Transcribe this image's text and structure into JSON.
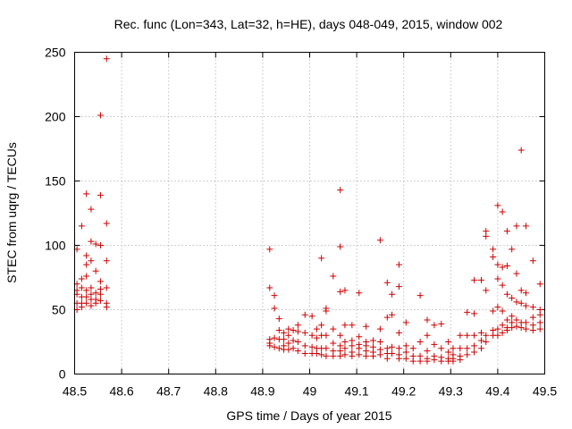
{
  "chart_data": {
    "type": "scatter",
    "title": "Rec. func (Lon=343, Lat=32, h=HE), days 048-049, 2015, window 002",
    "xlabel": "GPS time / Days of year 2015",
    "ylabel": "STEC from uqrg / TECUs",
    "xlim": [
      48.5,
      49.5
    ],
    "ylim": [
      0,
      250
    ],
    "xticks": [
      48.5,
      48.6,
      48.7,
      48.8,
      48.9,
      49,
      49.1,
      49.2,
      49.3,
      49.4,
      49.5
    ],
    "xtick_labels": [
      "48.5",
      "48.6",
      "48.7",
      "48.8",
      "48.9",
      "49",
      "49.1",
      "49.2",
      "49.3",
      "49.4",
      "49.5"
    ],
    "yticks": [
      0,
      50,
      100,
      150,
      200,
      250
    ],
    "ytick_labels": [
      "0",
      "50",
      "100",
      "150",
      "200",
      "250"
    ],
    "grid": true,
    "marker": "plus",
    "color": "#cc0000",
    "series": [
      {
        "points": [
          [
            48.505,
            97
          ],
          [
            48.505,
            70
          ],
          [
            48.505,
            65
          ],
          [
            48.505,
            62
          ],
          [
            48.505,
            55
          ],
          [
            48.505,
            50
          ],
          [
            48.515,
            115
          ],
          [
            48.515,
            74
          ],
          [
            48.515,
            67
          ],
          [
            48.515,
            60
          ],
          [
            48.515,
            55
          ],
          [
            48.515,
            52
          ],
          [
            48.525,
            140
          ],
          [
            48.525,
            92
          ],
          [
            48.525,
            85
          ],
          [
            48.525,
            76
          ],
          [
            48.525,
            65
          ],
          [
            48.525,
            60
          ],
          [
            48.525,
            55
          ],
          [
            48.535,
            128
          ],
          [
            48.535,
            103
          ],
          [
            48.535,
            88
          ],
          [
            48.535,
            67
          ],
          [
            48.535,
            62
          ],
          [
            48.535,
            58
          ],
          [
            48.535,
            53
          ],
          [
            48.545,
            101
          ],
          [
            48.545,
            80
          ],
          [
            48.545,
            63
          ],
          [
            48.545,
            58
          ],
          [
            48.545,
            55
          ],
          [
            48.555,
            201
          ],
          [
            48.555,
            139
          ],
          [
            48.555,
            100
          ],
          [
            48.555,
            72
          ],
          [
            48.555,
            66
          ],
          [
            48.555,
            62
          ],
          [
            48.555,
            57
          ],
          [
            48.568,
            245
          ],
          [
            48.568,
            117
          ],
          [
            48.568,
            88
          ],
          [
            48.568,
            67
          ],
          [
            48.568,
            55
          ],
          [
            48.568,
            52
          ],
          [
            48.915,
            97
          ],
          [
            48.915,
            67
          ],
          [
            48.915,
            27
          ],
          [
            48.915,
            24
          ],
          [
            48.915,
            22
          ],
          [
            48.925,
            61
          ],
          [
            48.925,
            51
          ],
          [
            48.925,
            28
          ],
          [
            48.925,
            21
          ],
          [
            48.935,
            43
          ],
          [
            48.935,
            34
          ],
          [
            48.935,
            27
          ],
          [
            48.935,
            20
          ],
          [
            48.945,
            32
          ],
          [
            48.945,
            27
          ],
          [
            48.945,
            22
          ],
          [
            48.945,
            19
          ],
          [
            48.955,
            35
          ],
          [
            48.955,
            30
          ],
          [
            48.955,
            24
          ],
          [
            48.955,
            19
          ],
          [
            48.965,
            34
          ],
          [
            48.965,
            26
          ],
          [
            48.965,
            20
          ],
          [
            48.975,
            38
          ],
          [
            48.975,
            33
          ],
          [
            48.975,
            25
          ],
          [
            48.975,
            18
          ],
          [
            48.99,
            46
          ],
          [
            48.99,
            32
          ],
          [
            48.99,
            22
          ],
          [
            48.99,
            16
          ],
          [
            49.005,
            45
          ],
          [
            49.005,
            30
          ],
          [
            49.005,
            21
          ],
          [
            49.005,
            16
          ],
          [
            49.015,
            35
          ],
          [
            49.015,
            28
          ],
          [
            49.015,
            20
          ],
          [
            49.015,
            16
          ],
          [
            49.025,
            90
          ],
          [
            49.025,
            38
          ],
          [
            49.025,
            30
          ],
          [
            49.025,
            20
          ],
          [
            49.025,
            15
          ],
          [
            49.035,
            51
          ],
          [
            49.035,
            49
          ],
          [
            49.035,
            30
          ],
          [
            49.035,
            20
          ],
          [
            49.035,
            14
          ],
          [
            49.05,
            76
          ],
          [
            49.05,
            35
          ],
          [
            49.05,
            24
          ],
          [
            49.05,
            18
          ],
          [
            49.05,
            14
          ],
          [
            49.065,
            143
          ],
          [
            49.065,
            99
          ],
          [
            49.065,
            64
          ],
          [
            49.065,
            30
          ],
          [
            49.065,
            22
          ],
          [
            49.065,
            18
          ],
          [
            49.065,
            14
          ],
          [
            49.075,
            65
          ],
          [
            49.075,
            38
          ],
          [
            49.075,
            25
          ],
          [
            49.075,
            20
          ],
          [
            49.075,
            15
          ],
          [
            49.09,
            38
          ],
          [
            49.09,
            26
          ],
          [
            49.09,
            22
          ],
          [
            49.09,
            17
          ],
          [
            49.09,
            14
          ],
          [
            49.105,
            63
          ],
          [
            49.105,
            29
          ],
          [
            49.105,
            23
          ],
          [
            49.105,
            20
          ],
          [
            49.105,
            15
          ],
          [
            49.12,
            37
          ],
          [
            49.12,
            25
          ],
          [
            49.12,
            22
          ],
          [
            49.12,
            18
          ],
          [
            49.12,
            14
          ],
          [
            49.135,
            26
          ],
          [
            49.135,
            21
          ],
          [
            49.135,
            17
          ],
          [
            49.135,
            14
          ],
          [
            49.15,
            104
          ],
          [
            49.15,
            35
          ],
          [
            49.15,
            25
          ],
          [
            49.15,
            19
          ],
          [
            49.15,
            15
          ],
          [
            49.165,
            71
          ],
          [
            49.165,
            44
          ],
          [
            49.165,
            20
          ],
          [
            49.165,
            16
          ],
          [
            49.165,
            12
          ],
          [
            49.175,
            62
          ],
          [
            49.175,
            46
          ],
          [
            49.175,
            21
          ],
          [
            49.175,
            16
          ],
          [
            49.19,
            85
          ],
          [
            49.19,
            68
          ],
          [
            49.19,
            32
          ],
          [
            49.19,
            20
          ],
          [
            49.19,
            15
          ],
          [
            49.19,
            12
          ],
          [
            49.205,
            40
          ],
          [
            49.205,
            22
          ],
          [
            49.205,
            17
          ],
          [
            49.205,
            12
          ],
          [
            49.22,
            20
          ],
          [
            49.22,
            14
          ],
          [
            49.22,
            10
          ],
          [
            49.235,
            61
          ],
          [
            49.235,
            25
          ],
          [
            49.235,
            14
          ],
          [
            49.235,
            10
          ],
          [
            49.25,
            42
          ],
          [
            49.25,
            30
          ],
          [
            49.25,
            18
          ],
          [
            49.25,
            12
          ],
          [
            49.25,
            10
          ],
          [
            49.265,
            38
          ],
          [
            49.265,
            23
          ],
          [
            49.265,
            14
          ],
          [
            49.265,
            11
          ],
          [
            49.28,
            39
          ],
          [
            49.28,
            20
          ],
          [
            49.28,
            13
          ],
          [
            49.28,
            10
          ],
          [
            49.295,
            25
          ],
          [
            49.295,
            17
          ],
          [
            49.295,
            12
          ],
          [
            49.295,
            10
          ],
          [
            49.305,
            20
          ],
          [
            49.305,
            15
          ],
          [
            49.305,
            12
          ],
          [
            49.305,
            10
          ],
          [
            49.32,
            30
          ],
          [
            49.32,
            20
          ],
          [
            49.32,
            14
          ],
          [
            49.32,
            11
          ],
          [
            49.335,
            48
          ],
          [
            49.335,
            30
          ],
          [
            49.335,
            20
          ],
          [
            49.335,
            15
          ],
          [
            49.35,
            73
          ],
          [
            49.35,
            47
          ],
          [
            49.35,
            30
          ],
          [
            49.35,
            22
          ],
          [
            49.35,
            17
          ],
          [
            49.365,
            73
          ],
          [
            49.365,
            32
          ],
          [
            49.365,
            26
          ],
          [
            49.365,
            20
          ],
          [
            49.375,
            111
          ],
          [
            49.375,
            107
          ],
          [
            49.375,
            65
          ],
          [
            49.375,
            30
          ],
          [
            49.375,
            25
          ],
          [
            49.39,
            97
          ],
          [
            49.39,
            91
          ],
          [
            49.39,
            49
          ],
          [
            49.39,
            34
          ],
          [
            49.39,
            30
          ],
          [
            49.4,
            131
          ],
          [
            49.4,
            85
          ],
          [
            49.4,
            74
          ],
          [
            49.4,
            52
          ],
          [
            49.4,
            35
          ],
          [
            49.4,
            30
          ],
          [
            49.41,
            126
          ],
          [
            49.41,
            83
          ],
          [
            49.41,
            69
          ],
          [
            49.41,
            49
          ],
          [
            49.41,
            38
          ],
          [
            49.41,
            32
          ],
          [
            49.42,
            111
          ],
          [
            49.42,
            84
          ],
          [
            49.42,
            62
          ],
          [
            49.42,
            42
          ],
          [
            49.42,
            36
          ],
          [
            49.42,
            34
          ],
          [
            49.43,
            97
          ],
          [
            49.43,
            59
          ],
          [
            49.43,
            45
          ],
          [
            49.43,
            40
          ],
          [
            49.43,
            36
          ],
          [
            49.44,
            115
          ],
          [
            49.44,
            78
          ],
          [
            49.44,
            56
          ],
          [
            49.44,
            42
          ],
          [
            49.44,
            37
          ],
          [
            49.45,
            174
          ],
          [
            49.45,
            65
          ],
          [
            49.45,
            55
          ],
          [
            49.45,
            40
          ],
          [
            49.45,
            36
          ],
          [
            49.46,
            115
          ],
          [
            49.46,
            63
          ],
          [
            49.46,
            53
          ],
          [
            49.46,
            40
          ],
          [
            49.46,
            35
          ],
          [
            49.475,
            88
          ],
          [
            49.475,
            52
          ],
          [
            49.475,
            44
          ],
          [
            49.475,
            38
          ],
          [
            49.475,
            34
          ],
          [
            49.49,
            70
          ],
          [
            49.49,
            50
          ],
          [
            49.49,
            46
          ],
          [
            49.49,
            40
          ],
          [
            49.49,
            35
          ]
        ]
      }
    ]
  }
}
